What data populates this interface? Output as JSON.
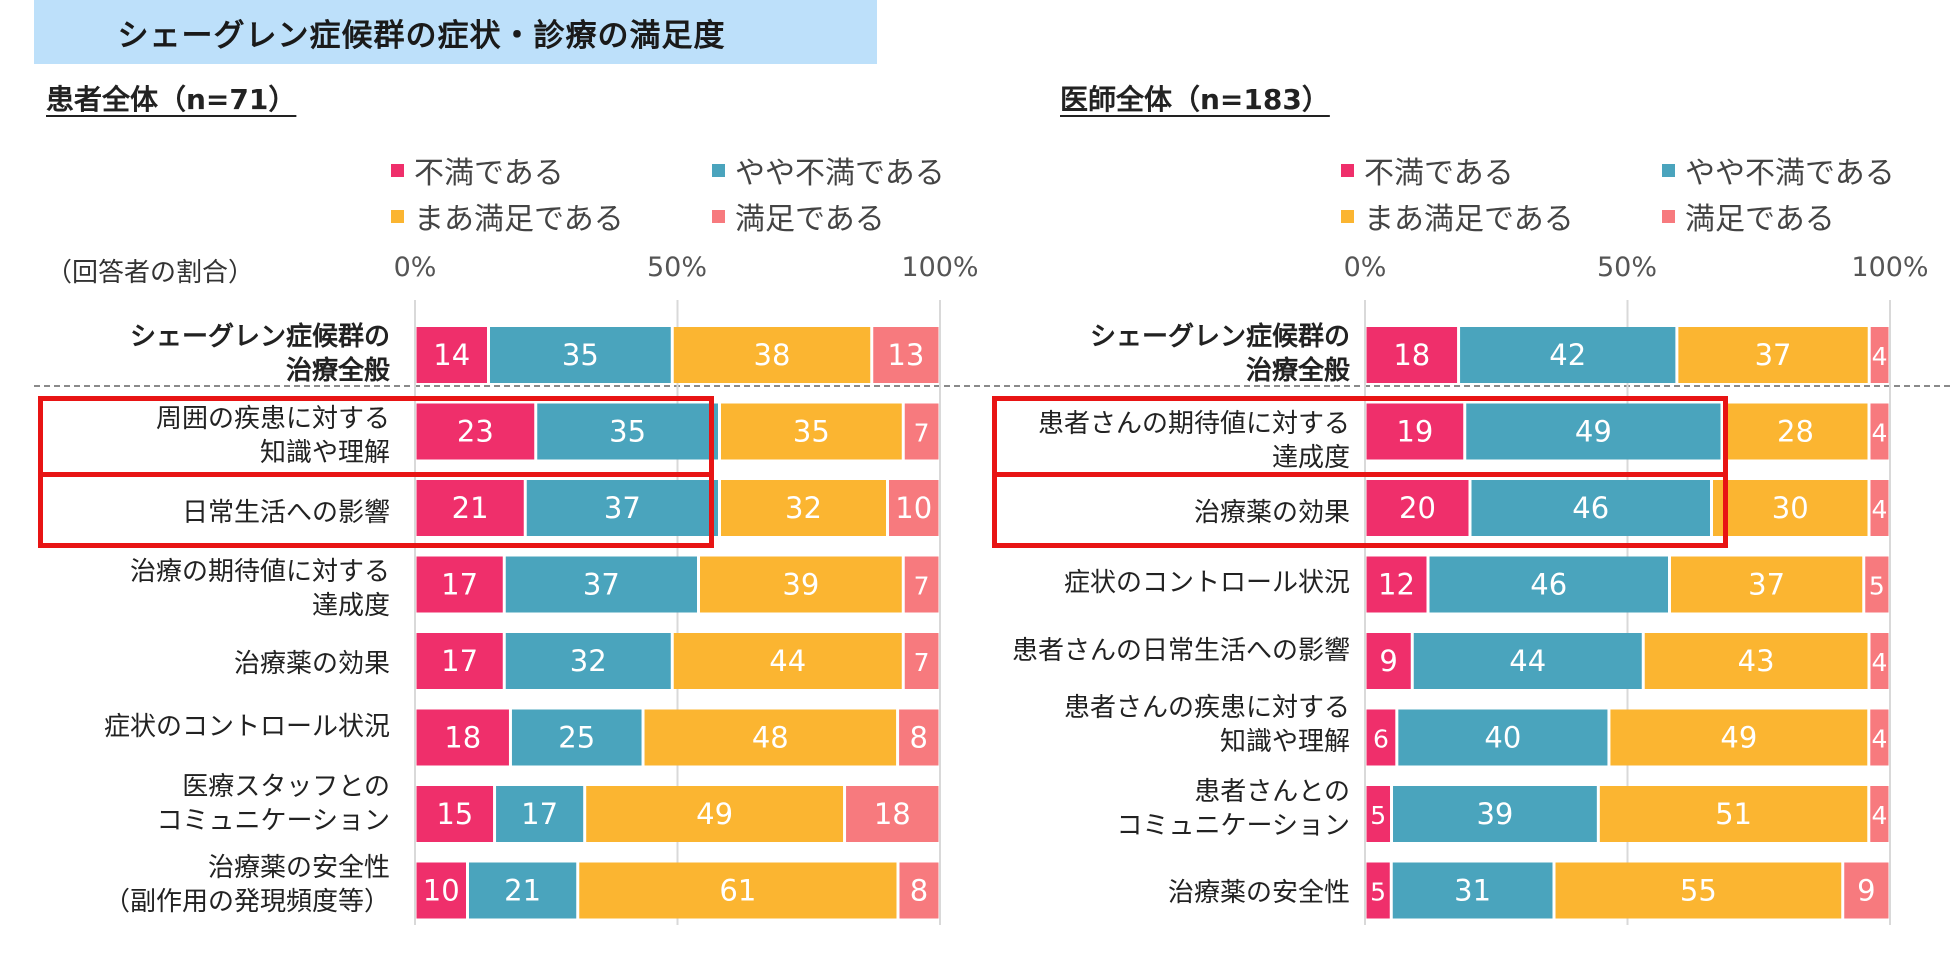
{
  "header": {
    "title": "シェーグレン症候群の症状・診療の満足度"
  },
  "side_note": "（回答者の割合）",
  "colors": {
    "不満である": "#ef2f6b",
    "やや不満である": "#4aa4bd",
    "まあ満足である": "#fbb531",
    "満足である": "#f77a7e"
  },
  "legend": [
    "不満である",
    "やや不満である",
    "まあ満足である",
    "満足である"
  ],
  "chart_data": [
    {
      "type": "bar",
      "orientation": "horizontal",
      "stacked": "percent",
      "title": "患者全体（n=71）",
      "xlim": [
        0,
        100
      ],
      "xticks": [
        "0%",
        "50%",
        "100%"
      ],
      "categories": [
        "シェーグレン症候群の\n治療全般",
        "周囲の疾患に対する\n知識や理解",
        "日常生活への影響",
        "治療の期待値に対する\n達成度",
        "治療薬の効果",
        "症状のコントロール状況",
        "医療スタッフとの\nコミュニケーション",
        "治療薬の安全性\n（副作用の発現頻度等）"
      ],
      "series": [
        {
          "name": "不満である",
          "values": [
            14,
            23,
            21,
            17,
            17,
            18,
            15,
            10
          ]
        },
        {
          "name": "やや不満である",
          "values": [
            35,
            35,
            37,
            37,
            32,
            25,
            17,
            21
          ]
        },
        {
          "name": "まあ満足である",
          "values": [
            38,
            35,
            32,
            39,
            44,
            48,
            49,
            61
          ]
        },
        {
          "name": "満足である",
          "values": [
            13,
            7,
            10,
            7,
            7,
            8,
            18,
            8
          ]
        }
      ],
      "highlighted_categories": [
        "周囲の疾患に対する\n知識や理解",
        "日常生活への影響"
      ]
    },
    {
      "type": "bar",
      "orientation": "horizontal",
      "stacked": "percent",
      "title": "医師全体（n=183）",
      "xlim": [
        0,
        100
      ],
      "xticks": [
        "0%",
        "50%",
        "100%"
      ],
      "categories": [
        "シェーグレン症候群の\n治療全般",
        "患者さんの期待値に対する\n達成度",
        "治療薬の効果",
        "症状のコントロール状況",
        "患者さんの日常生活への影響",
        "患者さんの疾患に対する\n知識や理解",
        "患者さんとの\nコミュニケーション",
        "治療薬の安全性"
      ],
      "series": [
        {
          "name": "不満である",
          "values": [
            18,
            19,
            20,
            12,
            9,
            6,
            5,
            5
          ]
        },
        {
          "name": "やや不満である",
          "values": [
            42,
            49,
            46,
            46,
            44,
            40,
            39,
            31
          ]
        },
        {
          "name": "まあ満足である",
          "values": [
            37,
            28,
            30,
            37,
            43,
            49,
            51,
            55
          ]
        },
        {
          "name": "満足である",
          "values": [
            4,
            4,
            4,
            5,
            4,
            4,
            4,
            9
          ]
        }
      ],
      "highlighted_categories": [
        "患者さんの期待値に対する\n達成度",
        "治療薬の効果"
      ]
    }
  ]
}
